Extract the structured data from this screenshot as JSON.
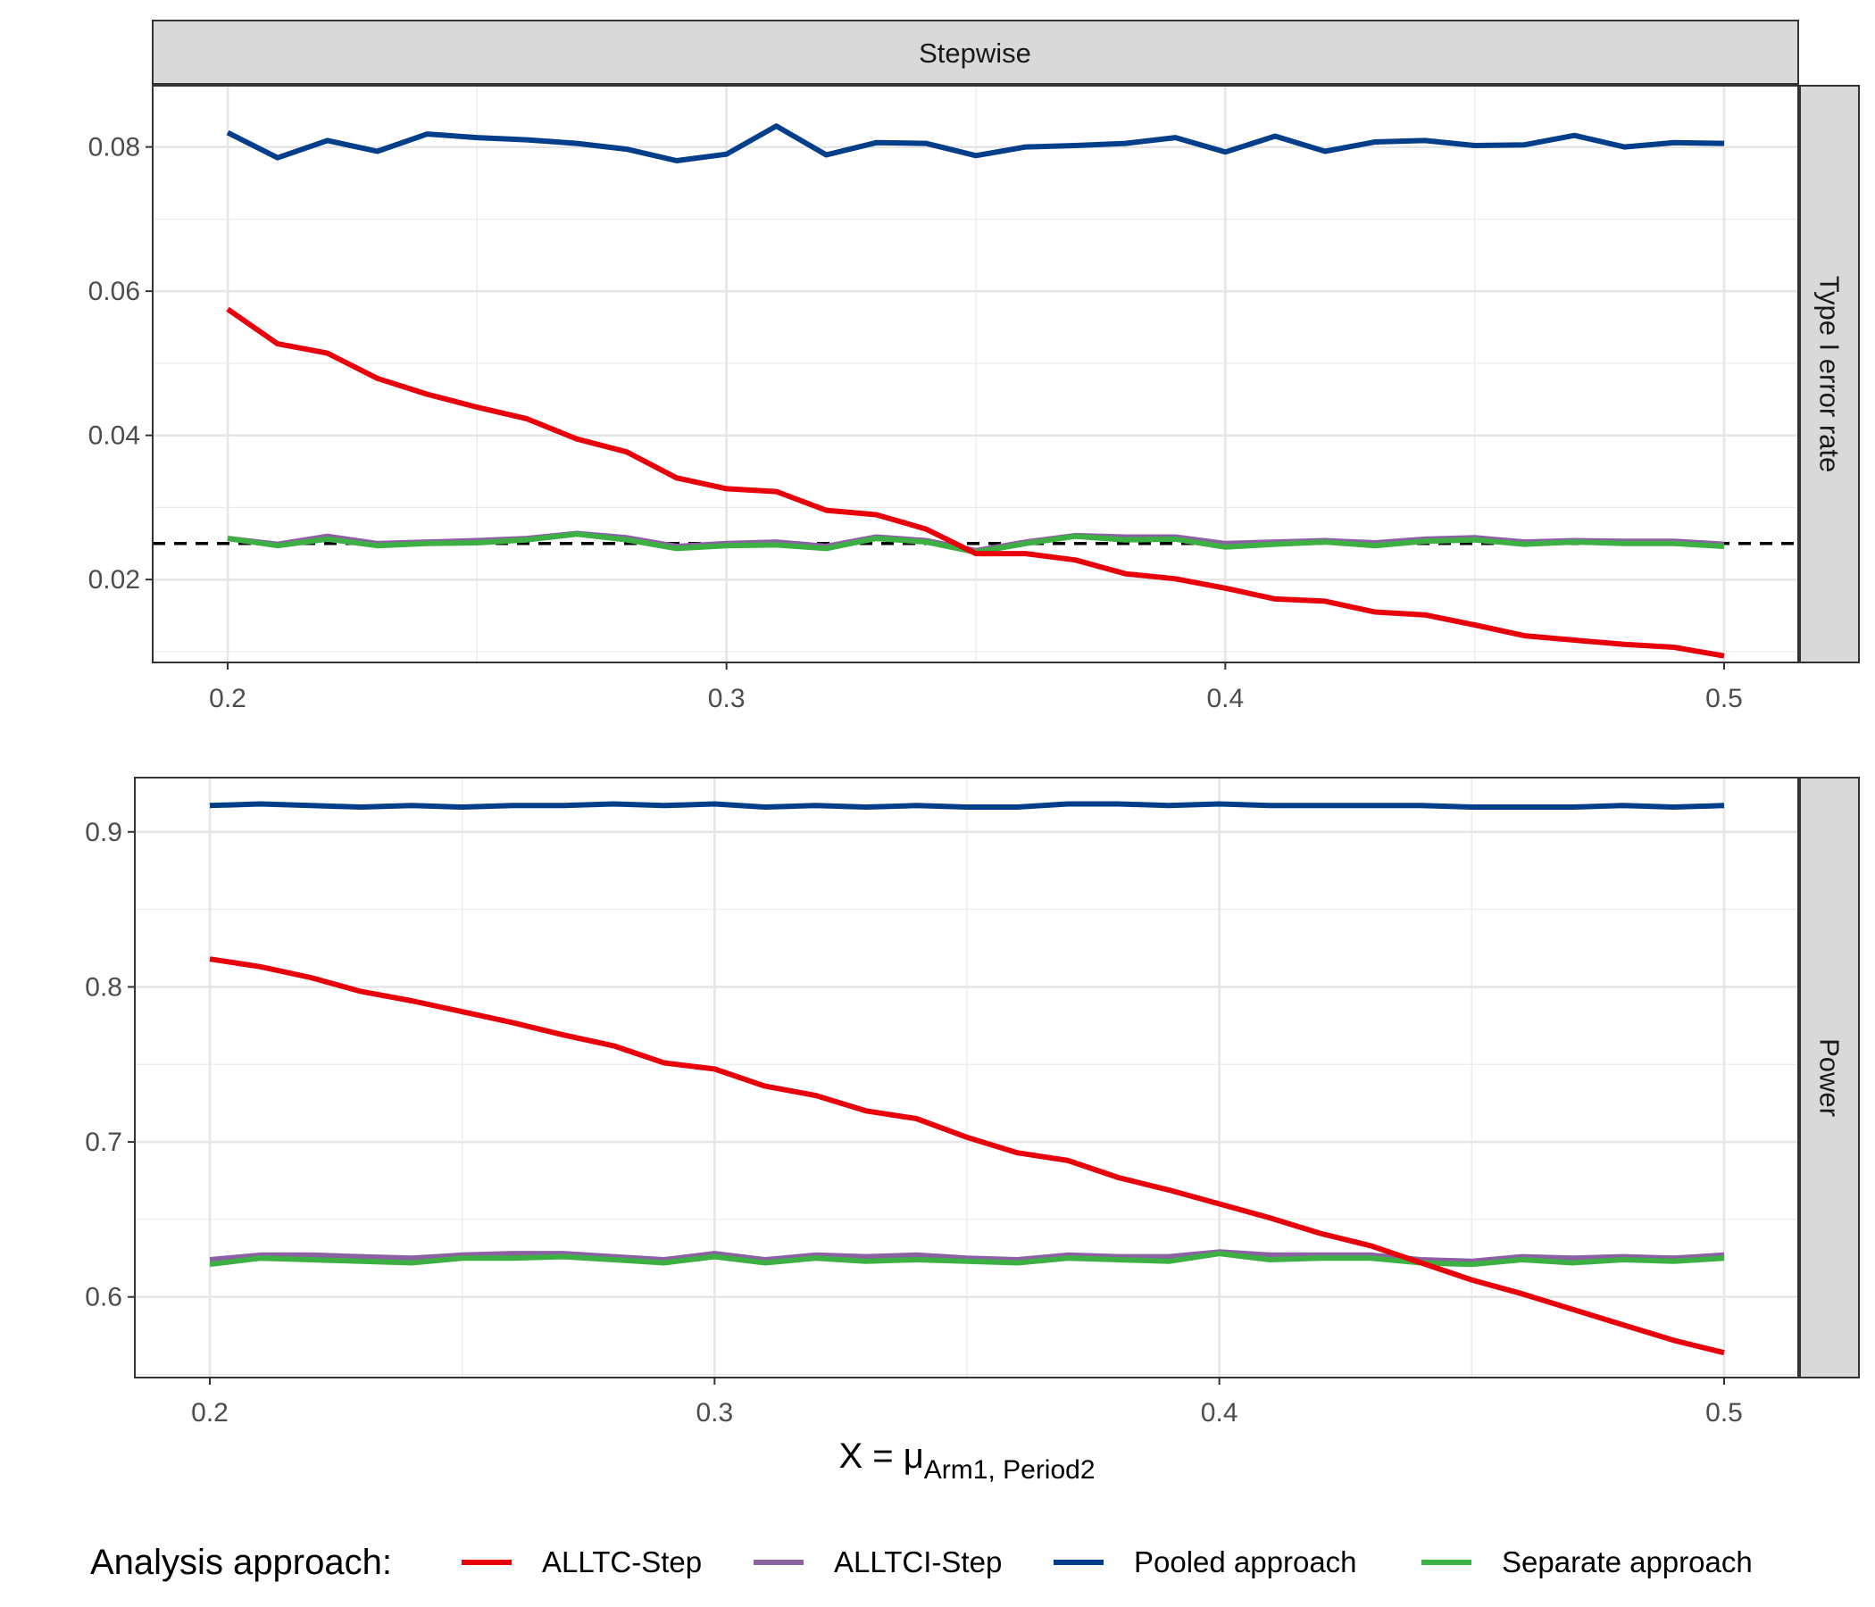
{
  "chart_data": {
    "type": "line",
    "column_strip": "Stepwise",
    "x": [
      0.2,
      0.21,
      0.22,
      0.23,
      0.24,
      0.25,
      0.26,
      0.27,
      0.28,
      0.29,
      0.3,
      0.31,
      0.32,
      0.33,
      0.34,
      0.35,
      0.36,
      0.37,
      0.38,
      0.39,
      0.4,
      0.41,
      0.42,
      0.43,
      0.44,
      0.45,
      0.46,
      0.47,
      0.48,
      0.49,
      0.5
    ],
    "xticks": [
      "0.2",
      "0.3",
      "0.4",
      "0.5"
    ],
    "xticks_values": [
      0.2,
      0.3,
      0.4,
      0.5
    ],
    "xlabel_main": "X = μ",
    "xlabel_sub": "Arm1, Period2",
    "legend_title": "Analysis approach:",
    "colors": {
      "ALLTC-Step": "#e8000b",
      "ALLTCI-Step": "#8c61a4",
      "Pooled approach": "#023e8a",
      "Separate approach": "#3cb043"
    },
    "legend": [
      "ALLTC-Step",
      "ALLTCI-Step",
      "Pooled approach",
      "Separate approach"
    ],
    "panels": [
      {
        "strip": "Type I error rate",
        "ylim": [
          0.0085,
          0.0885
        ],
        "yticks": [
          "0.02",
          "0.04",
          "0.06",
          "0.08"
        ],
        "yticks_values": [
          0.02,
          0.04,
          0.06,
          0.08
        ],
        "reference_line": 0.025,
        "series": [
          {
            "name": "ALLTC-Step",
            "values": [
              0.0575,
              0.0527,
              0.0514,
              0.0479,
              0.0457,
              0.0439,
              0.0423,
              0.0395,
              0.0377,
              0.0341,
              0.0326,
              0.0322,
              0.0296,
              0.029,
              0.027,
              0.0236,
              0.0236,
              0.0227,
              0.0208,
              0.0201,
              0.0188,
              0.0173,
              0.017,
              0.0155,
              0.0151,
              0.0137,
              0.0122,
              0.0116,
              0.011,
              0.0106,
              0.0094
            ]
          },
          {
            "name": "ALLTCI-Step",
            "values": [
              0.0257,
              0.0249,
              0.026,
              0.025,
              0.0252,
              0.0254,
              0.0257,
              0.0264,
              0.0258,
              0.0246,
              0.025,
              0.0252,
              0.0246,
              0.0259,
              0.0254,
              0.024,
              0.0252,
              0.0261,
              0.0259,
              0.0259,
              0.025,
              0.0252,
              0.0254,
              0.0251,
              0.0256,
              0.0258,
              0.0252,
              0.0254,
              0.0253,
              0.0253,
              0.0249
            ]
          },
          {
            "name": "Pooled approach",
            "values": [
              0.082,
              0.0785,
              0.0809,
              0.0794,
              0.0818,
              0.0813,
              0.081,
              0.0805,
              0.0797,
              0.0781,
              0.079,
              0.0829,
              0.0789,
              0.0806,
              0.0805,
              0.0788,
              0.08,
              0.0802,
              0.0805,
              0.0813,
              0.0793,
              0.0815,
              0.0794,
              0.0807,
              0.0809,
              0.0802,
              0.0803,
              0.0816,
              0.08,
              0.0806,
              0.0805
            ]
          },
          {
            "name": "Separate approach",
            "values": [
              0.0257,
              0.0247,
              0.0256,
              0.0247,
              0.025,
              0.0251,
              0.0255,
              0.0263,
              0.0255,
              0.0243,
              0.0247,
              0.0248,
              0.0243,
              0.0257,
              0.0252,
              0.0238,
              0.025,
              0.026,
              0.0255,
              0.0256,
              0.0245,
              0.0249,
              0.0252,
              0.0247,
              0.0253,
              0.0255,
              0.0249,
              0.0252,
              0.025,
              0.025,
              0.0246
            ]
          }
        ]
      },
      {
        "strip": "Power",
        "ylim": [
          0.548,
          0.935
        ],
        "yticks": [
          "0.6",
          "0.7",
          "0.8",
          "0.9"
        ],
        "yticks_values": [
          0.6,
          0.7,
          0.8,
          0.9
        ],
        "series": [
          {
            "name": "ALLTC-Step",
            "values": [
              0.818,
              0.813,
              0.806,
              0.797,
              0.791,
              0.784,
              0.777,
              0.769,
              0.762,
              0.751,
              0.747,
              0.736,
              0.73,
              0.72,
              0.715,
              0.703,
              0.693,
              0.688,
              0.677,
              0.669,
              0.66,
              0.651,
              0.641,
              0.633,
              0.622,
              0.611,
              0.602,
              0.592,
              0.582,
              0.572,
              0.564
            ]
          },
          {
            "name": "ALLTCI-Step",
            "values": [
              0.624,
              0.627,
              0.627,
              0.626,
              0.625,
              0.627,
              0.628,
              0.628,
              0.626,
              0.624,
              0.628,
              0.624,
              0.627,
              0.626,
              0.627,
              0.625,
              0.624,
              0.627,
              0.626,
              0.626,
              0.629,
              0.627,
              0.627,
              0.627,
              0.624,
              0.623,
              0.626,
              0.625,
              0.626,
              0.625,
              0.627
            ]
          },
          {
            "name": "Pooled approach",
            "values": [
              0.917,
              0.918,
              0.917,
              0.916,
              0.917,
              0.916,
              0.917,
              0.917,
              0.918,
              0.917,
              0.918,
              0.916,
              0.917,
              0.916,
              0.917,
              0.916,
              0.916,
              0.918,
              0.918,
              0.917,
              0.918,
              0.917,
              0.917,
              0.917,
              0.917,
              0.916,
              0.916,
              0.916,
              0.917,
              0.916,
              0.917
            ]
          },
          {
            "name": "Separate approach",
            "values": [
              0.621,
              0.625,
              0.624,
              0.623,
              0.622,
              0.625,
              0.625,
              0.626,
              0.624,
              0.622,
              0.626,
              0.622,
              0.625,
              0.623,
              0.624,
              0.623,
              0.622,
              0.625,
              0.624,
              0.623,
              0.628,
              0.624,
              0.625,
              0.625,
              0.622,
              0.621,
              0.624,
              0.622,
              0.624,
              0.623,
              0.625
            ]
          }
        ]
      }
    ]
  }
}
